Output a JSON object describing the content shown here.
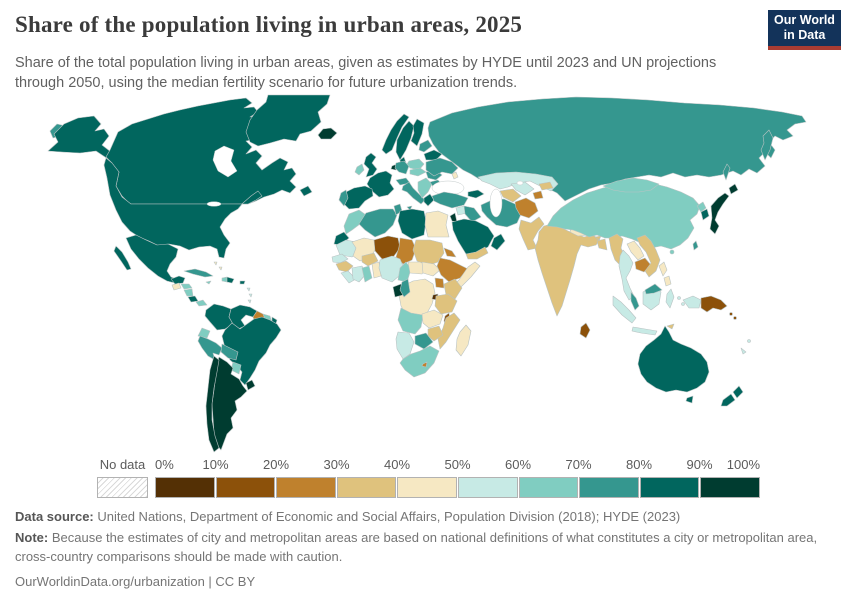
{
  "header": {
    "title": "Share of the population living in urban areas, 2025",
    "subtitle_line1": "Share of the total population living in urban areas, given as estimates by HYDE until 2023 and UN projections",
    "subtitle_line2": "through 2050, using the median fertility scenario for future urbanization trends.",
    "logo": {
      "line1": "Our World",
      "line2": "in Data",
      "bg_color": "#13335a",
      "accent_color": "#a93c32"
    }
  },
  "legend": {
    "no_data_label": "No data",
    "tick_labels": [
      "0%",
      "10%",
      "20%",
      "30%",
      "40%",
      "50%",
      "60%",
      "70%",
      "80%",
      "90%",
      "100%"
    ],
    "bins": [
      {
        "range": "0-10%",
        "color": "#543005"
      },
      {
        "range": "10-20%",
        "color": "#8c510a"
      },
      {
        "range": "20-30%",
        "color": "#bf812d"
      },
      {
        "range": "30-40%",
        "color": "#dfc27d"
      },
      {
        "range": "40-50%",
        "color": "#f6e8c3"
      },
      {
        "range": "50-60%",
        "color": "#c7eae5"
      },
      {
        "range": "60-70%",
        "color": "#80cdc1"
      },
      {
        "range": "70-80%",
        "color": "#35978f"
      },
      {
        "range": "80-90%",
        "color": "#01665e"
      },
      {
        "range": "90-100%",
        "color": "#003c30"
      }
    ]
  },
  "map": {
    "ocean_color": "#ffffff",
    "border_color": "#b9c3c3",
    "regions": {
      "canada": "#01665e",
      "alaska": "#01665e",
      "usa": "#01665e",
      "greenland": "#01665e",
      "chukotka": "#35978f",
      "mexico": "#01665e",
      "baja": "#01665e",
      "yucatan": "#01665e",
      "guatemala": "#f6e8c3",
      "honduras": "#80cdc1",
      "nicaragua": "#80cdc1",
      "costa-rica": "#01665e",
      "panama": "#80cdc1",
      "cuba": "#35978f",
      "jamaica": "#80cdc1",
      "haiti": "#80cdc1",
      "dominican-republic": "#01665e",
      "puerto-rico": "#01665e",
      "bahamas": "#f6e8c3",
      "lesser-antilles": "#c7eae5",
      "colombia": "#01665e",
      "venezuela": "#01665e",
      "guyana": "#bf812d",
      "suriname": "#80cdc1",
      "french-guiana": "#01665e",
      "ecuador": "#80cdc1",
      "peru": "#35978f",
      "bolivia": "#35978f",
      "paraguay": "#80cdc1",
      "brazil": "#01665e",
      "chile": "#003c30",
      "argentina": "#003c30",
      "uruguay": "#003c30",
      "iceland": "#003c30",
      "norway": "#01665e",
      "sweden": "#01665e",
      "finland": "#01665e",
      "denmark": "#01665e",
      "uk": "#01665e",
      "ireland": "#80cdc1",
      "benelux": "#003c30",
      "france": "#01665e",
      "germany": "#35978f",
      "poland": "#80cdc1",
      "spain": "#01665e",
      "portugal": "#35978f",
      "italy": "#35978f",
      "sicily": "#35978f",
      "alpine": "#35978f",
      "central-europe": "#80cdc1",
      "balkans": "#80cdc1",
      "greece": "#01665e",
      "romania": "#35978f",
      "bulgaria": "#35978f",
      "baltics": "#35978f",
      "belarus": "#01665e",
      "ukraine": "#35978f",
      "moldova": "#f6e8c3",
      "russia": "#35978f",
      "kamchatka": "#35978f",
      "sakhalin": "#35978f",
      "kazakhstan": "#c7eae5",
      "uzbekistan": "#c7eae5",
      "turkmenistan": "#dfc27d",
      "tajikistan": "#bf812d",
      "kyrgyzstan": "#dfc27d",
      "caucasus": "#01665e",
      "turkey": "#35978f",
      "syria": "#c7eae5",
      "iraq": "#35978f",
      "israel-jordan": "#003c30",
      "saudi-arabia": "#01665e",
      "yemen": "#dfc27d",
      "oman": "#01665e",
      "iran": "#35978f",
      "afghanistan": "#bf812d",
      "pakistan": "#dfc27d",
      "india": "#dfc27d",
      "nepal": "#f6e8c3",
      "bhutan": "#dfc27d",
      "bangladesh": "#dfc27d",
      "sri-lanka": "#8c510a",
      "china": "#80cdc1",
      "mongolia": "#80cdc1",
      "north-korea": "#80cdc1",
      "south-korea": "#01665e",
      "japan": "#003c30",
      "hokkaido": "#003c30",
      "taiwan": "#35978f",
      "hainan": "#80cdc1",
      "myanmar": "#dfc27d",
      "thailand": "#c7eae5",
      "laos": "#f6e8c3",
      "cambodia": "#bf812d",
      "vietnam": "#dfc27d",
      "malay-peninsula": "#35978f",
      "sumatra": "#c7eae5",
      "java": "#c7eae5",
      "borneo": "#c7eae5",
      "malaysia-borneo": "#35978f",
      "sulawesi": "#c7eae5",
      "philippines": "#f6e8c3",
      "moluccas": "#c7eae5",
      "west-papua": "#c7eae5",
      "papua-new-guinea": "#8c510a",
      "timor": "#dfc27d",
      "solomon-islands": "#8c510a",
      "fiji": "#c7eae5",
      "new-caledonia": "#c7eae5",
      "australia": "#01665e",
      "tasmania": "#01665e",
      "new-zealand": "#01665e",
      "morocco": "#80cdc1",
      "western-sahara": "#01665e",
      "algeria": "#35978f",
      "tunisia": "#35978f",
      "libya": "#01665e",
      "egypt": "#f6e8c3",
      "mauritania": "#c7eae5",
      "mali": "#f6e8c3",
      "niger": "#8c510a",
      "chad": "#bf812d",
      "sudan": "#dfc27d",
      "eritrea": "#bf812d",
      "senegal": "#c7eae5",
      "guinea": "#dfc27d",
      "sierra-leone": "#c7eae5",
      "ivory-coast": "#c7eae5",
      "burkina-faso": "#dfc27d",
      "ghana": "#80cdc1",
      "togo-benin": "#f6e8c3",
      "nigeria": "#c7eae5",
      "cameroon": "#80cdc1",
      "central-african-republic": "#f6e8c3",
      "south-sudan": "#f6e8c3",
      "ethiopia": "#bf812d",
      "somalia": "#f6e8c3",
      "kenya": "#dfc27d",
      "uganda": "#bf812d",
      "dr-congo": "#f6e8c3",
      "gabon": "#003c30",
      "congo": "#35978f",
      "rwanda-burundi": "#543005",
      "tanzania": "#dfc27d",
      "malawi": "#8c510a",
      "angola": "#80cdc1",
      "zambia": "#f6e8c3",
      "mozambique": "#dfc27d",
      "zimbabwe": "#dfc27d",
      "botswana": "#35978f",
      "namibia": "#c7eae5",
      "south-africa": "#80cdc1",
      "lesotho": "#bf812d",
      "madagascar": "#f6e8c3"
    }
  },
  "footer": {
    "data_source_label": "Data source:",
    "data_source_text": " United Nations, Department of Economic and Social Affairs, Population Division (2018); HYDE (2023)",
    "note_label": "Note:",
    "note_text": " Because the estimates of city and metropolitan areas are based on national definitions of what constitutes a city or metropolitan area, cross-country comparisons should be made with caution.",
    "attribution_link": "OurWorldinData.org/urbanization",
    "attribution_suffix": " | CC BY"
  }
}
